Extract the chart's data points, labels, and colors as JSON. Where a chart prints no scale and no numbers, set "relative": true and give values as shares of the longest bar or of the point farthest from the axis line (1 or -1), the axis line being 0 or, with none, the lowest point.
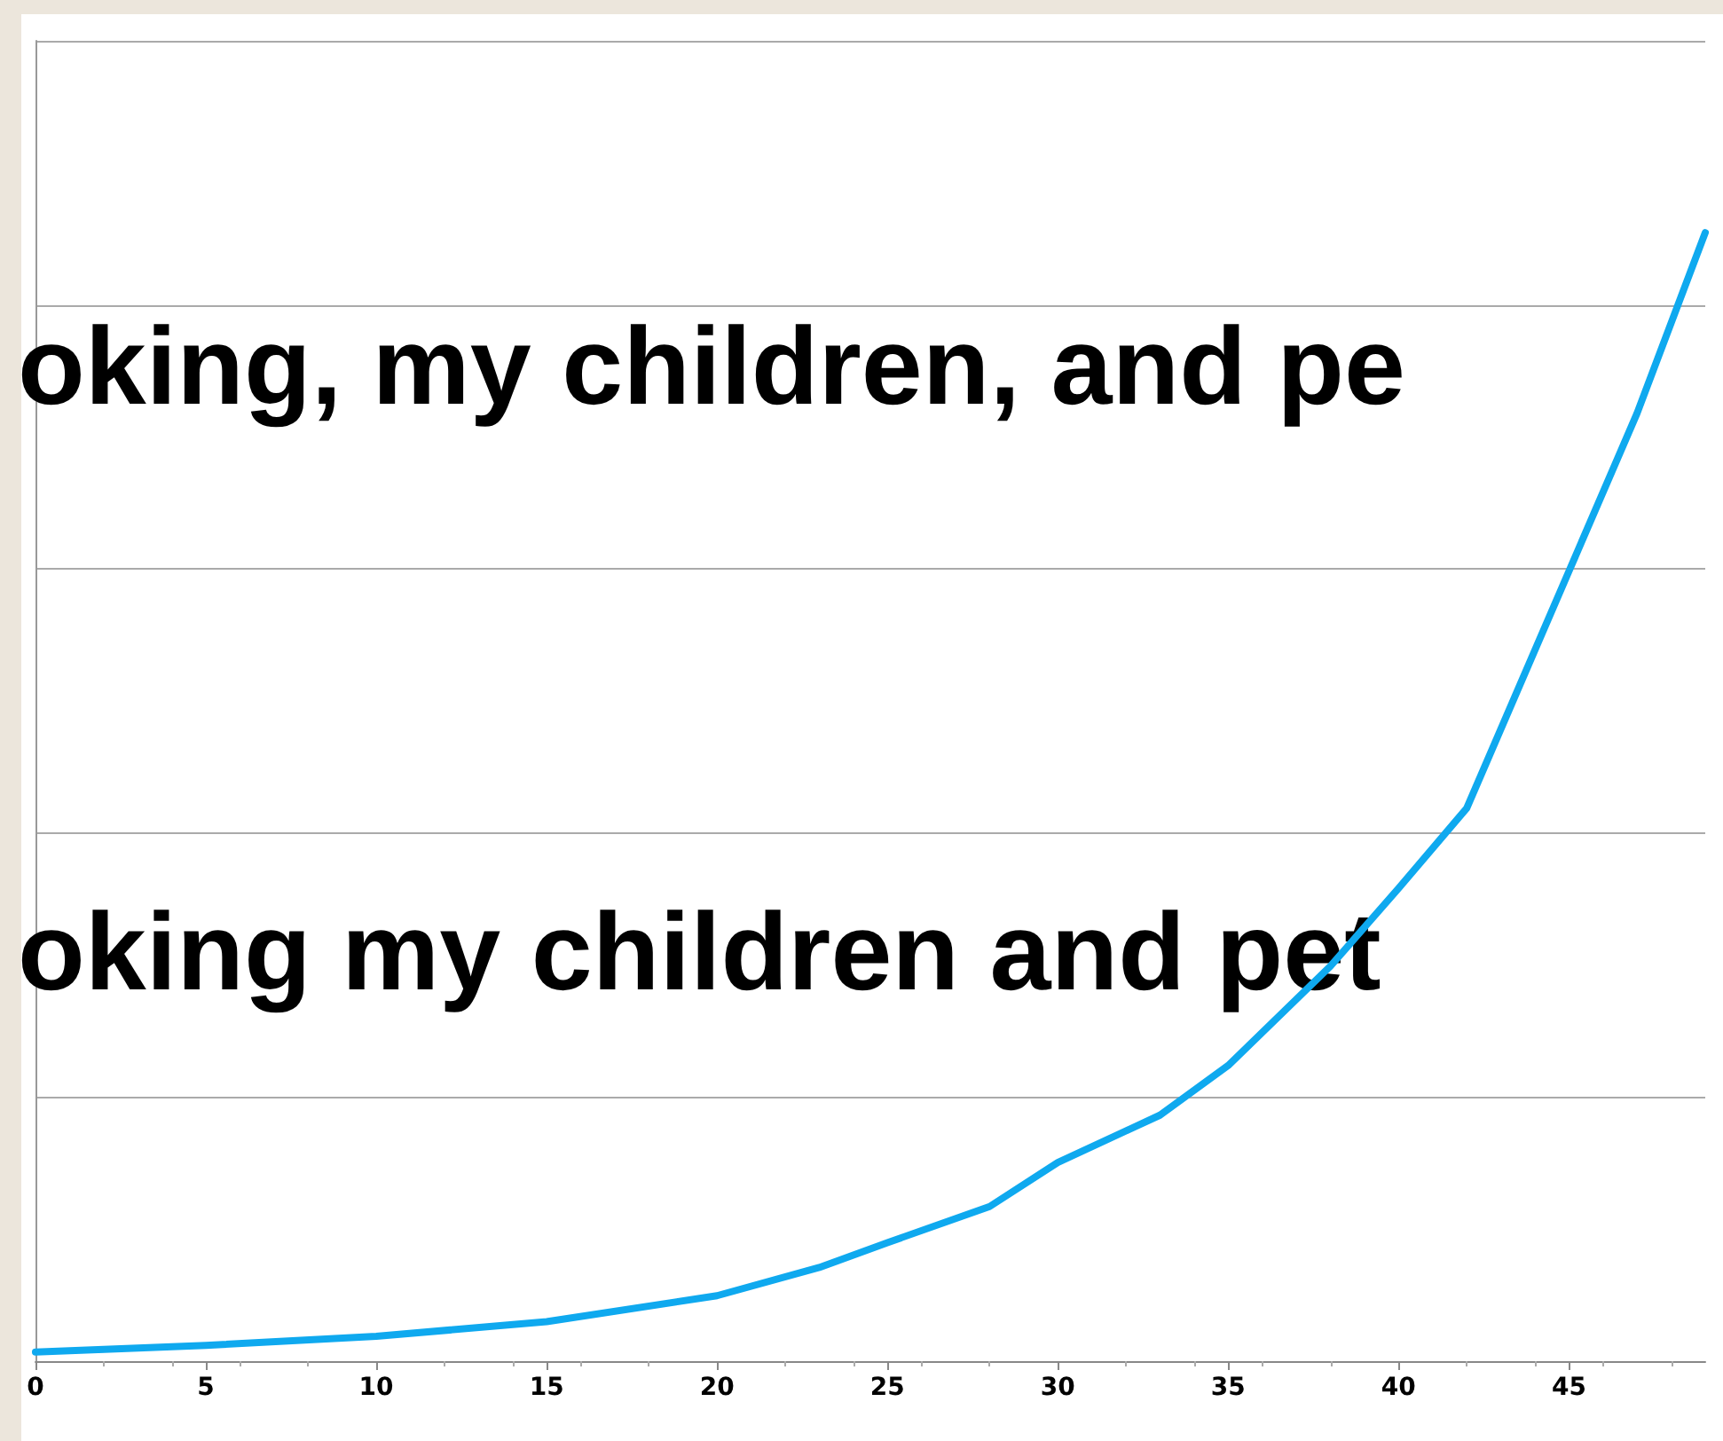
{
  "chart_data": {
    "type": "line",
    "x": [
      0,
      5,
      10,
      15,
      20,
      23,
      25,
      28,
      30,
      33,
      35,
      38,
      40,
      42,
      45,
      47,
      49
    ],
    "series": [
      {
        "color": "#0fa9ef",
        "values": [
          0.008,
          0.014,
          0.022,
          0.035,
          0.058,
          0.083,
          0.105,
          0.137,
          0.176,
          0.218,
          0.262,
          0.35,
          0.419,
          0.49,
          0.7,
          0.84,
          1
        ]
      }
    ],
    "relative": true,
    "xlim": [
      0,
      49
    ],
    "xticks": [
      0,
      5,
      10,
      15,
      20,
      25,
      30,
      35,
      40,
      45
    ],
    "grid": "y",
    "annotations": [
      "oking, my children, and pe",
      "oking my children and pet"
    ]
  }
}
